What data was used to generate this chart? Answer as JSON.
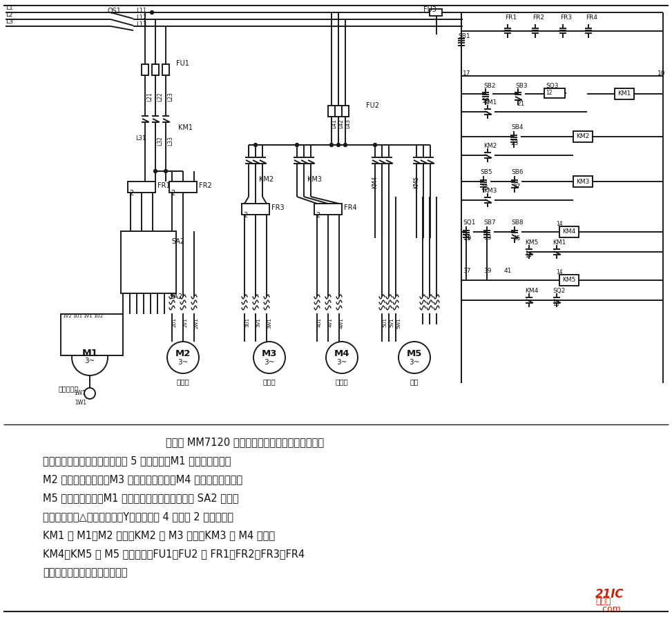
{
  "bg_color": "#ffffff",
  "lc": "#1a1a1a",
  "tc": "#111111",
  "fig_w": 9.73,
  "fig_h": 8.94,
  "dpi": 100,
  "desc": [
    "所示为 MM7120 型平面磨床主电路和电机的控制电",
    "路。从图中可以看出主电路中有 5 台电动机，M1 为砂轮电动机，",
    "M2 为冷却泵电动机，M3 为轴承泵电动机，M4 为液压泵电动机，",
    "M5 为升降电动机。M1 为双速电动机，用变速开关 SA2 转换转",
    "速，电动机从△形联接变成双Y形联接，从 4 极变为 2 极。接触器",
    "KM1 给 M1、M2 供电，KM2 给 M3 供电，KM3 给 M4 供电，",
    "KM4、KM5 使 M5 可逆运转，FU1、FU2 和 FR1、FR2、FR3、FR4",
    "对电动机进行短路和过载保护。"
  ]
}
